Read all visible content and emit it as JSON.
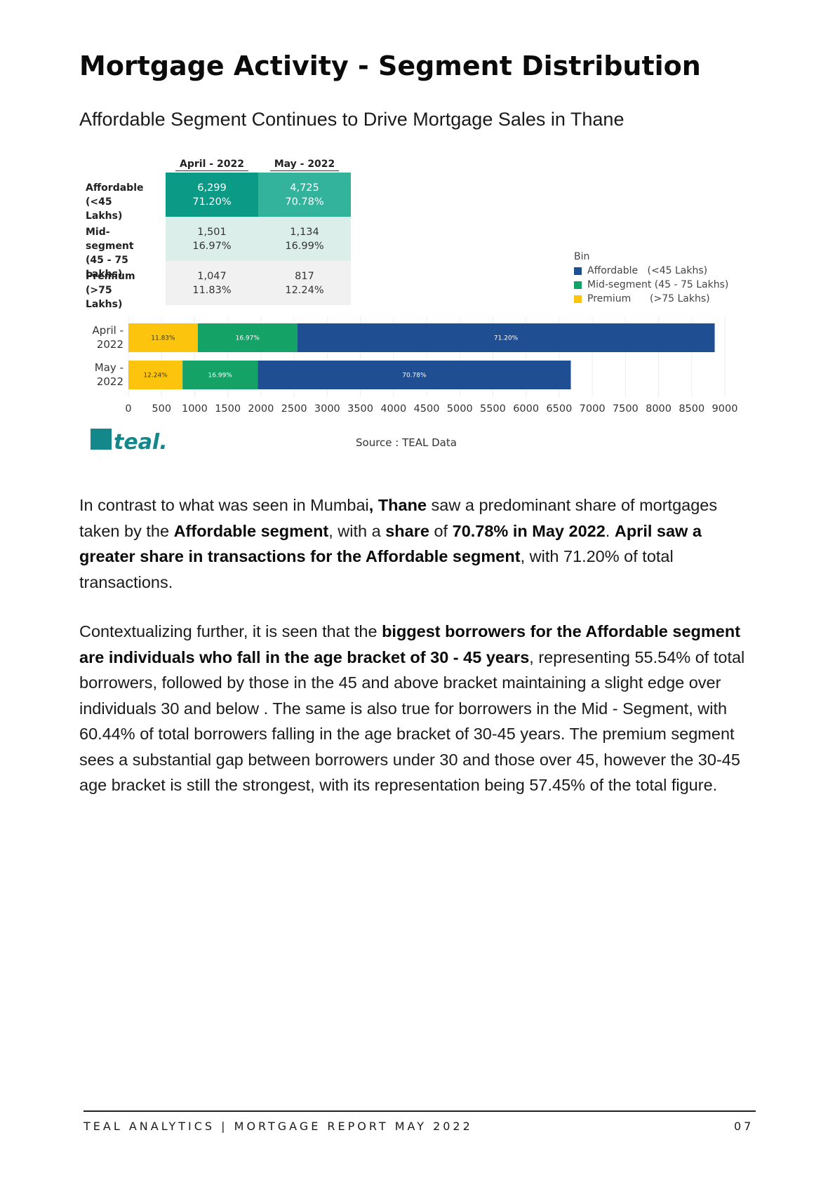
{
  "page": {
    "title": "Mortgage Activity - Segment Distribution",
    "subtitle": "Affordable Segment Continues to Drive Mortgage Sales in Thane"
  },
  "table": {
    "columns": [
      "April - 2022",
      "May - 2022"
    ],
    "rows": [
      {
        "label_line1": "Affordable",
        "label_line2": "(<45 Lakhs)",
        "cells": [
          {
            "count": "6,299",
            "pct": "71.20%"
          },
          {
            "count": "4,725",
            "pct": "70.78%"
          }
        ],
        "colors": [
          "#0a9a85",
          "#33b39c"
        ]
      },
      {
        "label_line1": "Mid-segment",
        "label_line2": "(45 - 75 Lakhs)",
        "cells": [
          {
            "count": "1,501",
            "pct": "16.97%"
          },
          {
            "count": "1,134",
            "pct": "16.99%"
          }
        ],
        "colors": [
          "#dbeee9",
          "#dbeee9"
        ]
      },
      {
        "label_line1": "Premium",
        "label_line2": "(>75 Lakhs)",
        "cells": [
          {
            "count": "1,047",
            "pct": "11.83%"
          },
          {
            "count": "817",
            "pct": "12.24%"
          }
        ],
        "colors": [
          "#f1f1f1",
          "#f1f1f1"
        ]
      }
    ]
  },
  "chart_data": {
    "type": "bar",
    "orientation": "horizontal",
    "stacked": true,
    "categories": [
      "April - 2022",
      "May - 2022"
    ],
    "category_lines": [
      [
        "April -",
        "2022"
      ],
      [
        "May -",
        "2022"
      ]
    ],
    "series": [
      {
        "name": "Premium      (>75 Lakhs)",
        "values": [
          1047,
          817
        ],
        "labels": [
          "11.83%",
          "12.24%"
        ],
        "color": "#fcc40d"
      },
      {
        "name": "Mid-segment (45 - 75 Lakhs)",
        "values": [
          1501,
          1134
        ],
        "labels": [
          "16.97%",
          "16.99%"
        ],
        "color": "#15a267"
      },
      {
        "name": "Affordable   (<45 Lakhs)",
        "values": [
          6299,
          4725
        ],
        "labels": [
          "71.20%",
          "70.78%"
        ],
        "color": "#1f4e92"
      }
    ],
    "legend_title": "Bin",
    "legend_order": [
      2,
      1,
      0
    ],
    "legend_position": "right",
    "xlim": [
      0,
      9000
    ],
    "xticks": [
      0,
      500,
      1000,
      1500,
      2000,
      2500,
      3000,
      3500,
      4000,
      4500,
      5000,
      5500,
      6000,
      6500,
      7000,
      7500,
      8000,
      8500,
      9000
    ],
    "grid": true
  },
  "source_text": "Source : TEAL Data",
  "logo": {
    "text": "teal.",
    "mark_color": "#13878a",
    "text_color": "#13878a"
  },
  "footer": {
    "left": "TEAL ANALYTICS | MORTGAGE REPORT MAY 2022",
    "right": "07"
  },
  "paragraphs": [
    [
      {
        "t": "In contrast to what was seen in Mumbai",
        "b": false
      },
      {
        "t": ", Thane",
        "b": true
      },
      {
        "t": " saw a predominant share of mortgages taken by the ",
        "b": false
      },
      {
        "t": "Affordable segment",
        "b": true
      },
      {
        "t": ", with a ",
        "b": false
      },
      {
        "t": "share",
        "b": true
      },
      {
        "t": " of ",
        "b": false
      },
      {
        "t": "70.78% in May 2022",
        "b": true
      },
      {
        "t": ". ",
        "b": false
      },
      {
        "t": "April saw a greater share in transactions for the Affordable segment",
        "b": true
      },
      {
        "t": ", with 71.20% of total transactions.",
        "b": false
      }
    ],
    [
      {
        "t": "Contextualizing further, it is seen that the ",
        "b": false
      },
      {
        "t": "biggest borrowers for the Affordable segment are individuals who fall in the age bracket of 30 - 45 years",
        "b": true
      },
      {
        "t": ", representing 55.54% of total borrowers,  followed by those in the 45 and above bracket maintaining a slight edge over individuals 30 and below . The same is also true for borrowers in the  Mid - Segment, with 60.44% of total borrowers falling in the age bracket of 30-45 years. The premium segment sees a substantial gap between borrowers under 30 and those over 45, however the 30-45 age bracket is still the strongest, with its representation being 57.45% of the total figure.",
        "b": false
      }
    ]
  ]
}
